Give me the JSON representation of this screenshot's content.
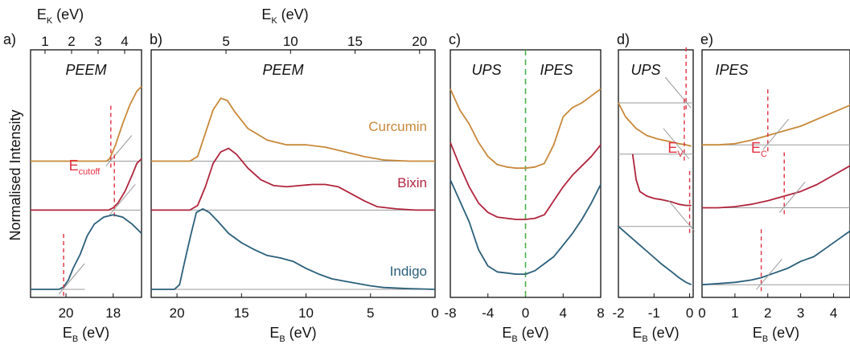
{
  "ylabel": "Normalised Intensity",
  "colors": {
    "Curcumin": "#c8883a",
    "Bixin": "#b0243c",
    "Indigo": "#2a5f7a",
    "cutoff_marker": "#e03040",
    "zero_marker": "#4aae4a",
    "baseline": "#9a9a9a"
  },
  "chart_data": [
    {
      "panel": "a)",
      "type": "line",
      "tag": "PEEM",
      "xlabel_main": "E",
      "xlabel_sub": "B",
      "xlabel_unit": "(eV)",
      "top_xlabel_main": "E",
      "top_xlabel_sub": "K",
      "top_xlabel_unit": "(eV)",
      "xlim": [
        21.5,
        16.8
      ],
      "x_ticks": [
        20,
        18
      ],
      "top_ticks": [
        1,
        2,
        3,
        4
      ],
      "annotation_main": "E",
      "annotation_sub": "cutoff",
      "series": [
        {
          "name": "Curcumin",
          "cutoff": 18.1,
          "points": [
            [
              21.5,
              0.55
            ],
            [
              18.3,
              0.55
            ],
            [
              18.15,
              0.56
            ],
            [
              17.9,
              0.62
            ],
            [
              17.6,
              0.71
            ],
            [
              17.3,
              0.79
            ],
            [
              17.0,
              0.85
            ],
            [
              16.8,
              0.87
            ]
          ]
        },
        {
          "name": "Bixin",
          "cutoff": 17.95,
          "points": [
            [
              21.5,
              0.34
            ],
            [
              18.2,
              0.34
            ],
            [
              18.0,
              0.35
            ],
            [
              17.8,
              0.37
            ],
            [
              17.5,
              0.42
            ],
            [
              17.2,
              0.49
            ],
            [
              17.0,
              0.54
            ],
            [
              16.8,
              0.56
            ]
          ]
        },
        {
          "name": "Indigo",
          "cutoff": 20.1,
          "points": [
            [
              21.5,
              0.0
            ],
            [
              20.3,
              0.0
            ],
            [
              20.1,
              0.01
            ],
            [
              19.9,
              0.04
            ],
            [
              19.7,
              0.09
            ],
            [
              19.4,
              0.15
            ],
            [
              19.1,
              0.23
            ],
            [
              18.8,
              0.28
            ],
            [
              18.4,
              0.31
            ],
            [
              18.0,
              0.32
            ],
            [
              17.6,
              0.31
            ],
            [
              17.2,
              0.28
            ],
            [
              16.8,
              0.24
            ]
          ]
        }
      ]
    },
    {
      "panel": "b)",
      "type": "line",
      "tag": "PEEM",
      "xlabel_main": "E",
      "xlabel_sub": "B",
      "xlabel_unit": "(eV)",
      "top_xlabel_main": "E",
      "top_xlabel_sub": "K",
      "top_xlabel_unit": "(eV)",
      "xlim": [
        22,
        0
      ],
      "x_ticks": [
        20,
        15,
        10,
        5,
        0
      ],
      "top_ticks": [
        5,
        10,
        15,
        20
      ],
      "series": [
        {
          "name": "Curcumin",
          "points": [
            [
              22,
              0.55
            ],
            [
              19,
              0.55
            ],
            [
              18.4,
              0.57
            ],
            [
              17.8,
              0.67
            ],
            [
              17.2,
              0.77
            ],
            [
              16.6,
              0.82
            ],
            [
              16.1,
              0.81
            ],
            [
              15.5,
              0.76
            ],
            [
              14.5,
              0.69
            ],
            [
              13.0,
              0.64
            ],
            [
              11.5,
              0.62
            ],
            [
              10.0,
              0.62
            ],
            [
              8.5,
              0.61
            ],
            [
              7.0,
              0.59
            ],
            [
              5.5,
              0.57
            ],
            [
              4.0,
              0.555
            ],
            [
              2.0,
              0.55
            ],
            [
              0,
              0.55
            ]
          ]
        },
        {
          "name": "Bixin",
          "points": [
            [
              22,
              0.34
            ],
            [
              19,
              0.34
            ],
            [
              18.4,
              0.36
            ],
            [
              17.8,
              0.44
            ],
            [
              17.2,
              0.54
            ],
            [
              16.6,
              0.59
            ],
            [
              16.0,
              0.605
            ],
            [
              15.4,
              0.58
            ],
            [
              14.5,
              0.52
            ],
            [
              13.5,
              0.47
            ],
            [
              12.5,
              0.445
            ],
            [
              11.5,
              0.44
            ],
            [
              10.5,
              0.445
            ],
            [
              9.5,
              0.45
            ],
            [
              8.5,
              0.45
            ],
            [
              7.5,
              0.44
            ],
            [
              6.5,
              0.41
            ],
            [
              5.5,
              0.38
            ],
            [
              4.5,
              0.355
            ],
            [
              3.0,
              0.345
            ],
            [
              1.5,
              0.34
            ],
            [
              0,
              0.34
            ]
          ]
        },
        {
          "name": "Indigo",
          "points": [
            [
              22,
              0.0
            ],
            [
              20.2,
              0.0
            ],
            [
              19.8,
              0.02
            ],
            [
              19.4,
              0.12
            ],
            [
              18.9,
              0.24
            ],
            [
              18.5,
              0.33
            ],
            [
              18.0,
              0.345
            ],
            [
              17.5,
              0.33
            ],
            [
              16.8,
              0.29
            ],
            [
              16.0,
              0.24
            ],
            [
              15.0,
              0.2
            ],
            [
              14.0,
              0.17
            ],
            [
              13.0,
              0.145
            ],
            [
              12.0,
              0.135
            ],
            [
              11.0,
              0.12
            ],
            [
              10.0,
              0.09
            ],
            [
              9.0,
              0.065
            ],
            [
              8.0,
              0.045
            ],
            [
              7.0,
              0.035
            ],
            [
              6.0,
              0.025
            ],
            [
              5.0,
              0.015
            ],
            [
              4.0,
              0.008
            ],
            [
              2.0,
              0.003
            ],
            [
              0,
              0.0
            ]
          ]
        }
      ]
    },
    {
      "panel": "c)",
      "type": "line",
      "tags": [
        "UPS",
        "IPES"
      ],
      "xlabel_main": "E",
      "xlabel_sub": "B",
      "xlabel_unit": "(eV)",
      "xlim": [
        -8,
        8
      ],
      "x_ticks": [
        -8,
        -4,
        0,
        4,
        8
      ],
      "series": [
        {
          "name": "Curcumin",
          "points": [
            [
              -8,
              0.86
            ],
            [
              -7,
              0.77
            ],
            [
              -6,
              0.71
            ],
            [
              -5,
              0.63
            ],
            [
              -4,
              0.57
            ],
            [
              -3,
              0.535
            ],
            [
              -2,
              0.525
            ],
            [
              -1,
              0.52
            ],
            [
              0,
              0.52
            ],
            [
              1,
              0.525
            ],
            [
              2,
              0.54
            ],
            [
              3,
              0.62
            ],
            [
              4,
              0.74
            ],
            [
              5,
              0.78
            ],
            [
              6,
              0.8
            ],
            [
              7,
              0.83
            ],
            [
              8,
              0.86
            ]
          ]
        },
        {
          "name": "Bixin",
          "points": [
            [
              -8,
              0.63
            ],
            [
              -7,
              0.53
            ],
            [
              -6,
              0.44
            ],
            [
              -5,
              0.37
            ],
            [
              -4,
              0.33
            ],
            [
              -3,
              0.31
            ],
            [
              -2,
              0.305
            ],
            [
              -1,
              0.3
            ],
            [
              0,
              0.3
            ],
            [
              1,
              0.305
            ],
            [
              2,
              0.32
            ],
            [
              3,
              0.38
            ],
            [
              4,
              0.44
            ],
            [
              5,
              0.49
            ],
            [
              6,
              0.53
            ],
            [
              7,
              0.57
            ],
            [
              8,
              0.62
            ]
          ]
        },
        {
          "name": "Indigo",
          "points": [
            [
              -8,
              0.47
            ],
            [
              -7,
              0.38
            ],
            [
              -6,
              0.29
            ],
            [
              -5,
              0.17
            ],
            [
              -4,
              0.1
            ],
            [
              -3,
              0.075
            ],
            [
              -2,
              0.07
            ],
            [
              -1,
              0.065
            ],
            [
              0,
              0.065
            ],
            [
              1,
              0.08
            ],
            [
              2,
              0.11
            ],
            [
              3,
              0.14
            ],
            [
              4,
              0.19
            ],
            [
              5,
              0.24
            ],
            [
              6,
              0.3
            ],
            [
              7,
              0.37
            ],
            [
              8,
              0.45
            ]
          ]
        }
      ]
    },
    {
      "panel": "d)",
      "type": "line",
      "tag": "UPS",
      "xlabel_main": "E",
      "xlabel_sub": "B",
      "xlabel_unit": "(eV)",
      "xlim": [
        -2,
        0.1
      ],
      "x_ticks": [
        -2,
        -1,
        0
      ],
      "annotation_main": "E",
      "annotation_sub": "V",
      "series": [
        {
          "name": "Curcumin",
          "onset": -0.1,
          "points": [
            [
              -2.0,
              0.8
            ],
            [
              -1.8,
              0.74
            ],
            [
              -1.5,
              0.69
            ],
            [
              -1.2,
              0.66
            ],
            [
              -0.9,
              0.645
            ],
            [
              -0.6,
              0.635
            ],
            [
              -0.3,
              0.625
            ],
            [
              -0.1,
              0.62
            ],
            [
              0.05,
              0.615
            ]
          ]
        },
        {
          "name": "Bixin",
          "onset": -0.15,
          "points": [
            [
              -1.6,
              0.58
            ],
            [
              -1.5,
              0.47
            ],
            [
              -1.4,
              0.42
            ],
            [
              -1.2,
              0.4
            ],
            [
              -1.0,
              0.39
            ],
            [
              -0.8,
              0.385
            ],
            [
              -0.5,
              0.375
            ],
            [
              -0.3,
              0.365
            ],
            [
              -0.1,
              0.36
            ],
            [
              0.05,
              0.36
            ]
          ]
        },
        {
          "name": "Indigo",
          "onset": 0.0,
          "points": [
            [
              -2.0,
              0.27
            ],
            [
              -1.7,
              0.23
            ],
            [
              -1.4,
              0.19
            ],
            [
              -1.1,
              0.15
            ],
            [
              -0.8,
              0.11
            ],
            [
              -0.5,
              0.075
            ],
            [
              -0.3,
              0.05
            ],
            [
              -0.1,
              0.03
            ],
            [
              0.05,
              0.02
            ]
          ]
        }
      ]
    },
    {
      "panel": "e)",
      "type": "line",
      "tag": "IPES",
      "xlabel_main": "E",
      "xlabel_sub": "B",
      "xlabel_unit": "(eV)",
      "xlim": [
        0,
        4.5
      ],
      "x_ticks": [
        0,
        1,
        2,
        3,
        4
      ],
      "annotation_main": "E",
      "annotation_sub": "C",
      "series": [
        {
          "name": "Curcumin",
          "onset": 2.0,
          "points": [
            [
              0,
              0.62
            ],
            [
              0.5,
              0.62
            ],
            [
              1.0,
              0.625
            ],
            [
              1.5,
              0.64
            ],
            [
              2.0,
              0.66
            ],
            [
              2.5,
              0.68
            ],
            [
              3.0,
              0.7
            ],
            [
              3.5,
              0.73
            ],
            [
              4.0,
              0.76
            ],
            [
              4.5,
              0.79
            ]
          ]
        },
        {
          "name": "Bixin",
          "onset": 2.5,
          "points": [
            [
              0,
              0.35
            ],
            [
              0.5,
              0.35
            ],
            [
              1.0,
              0.355
            ],
            [
              1.5,
              0.365
            ],
            [
              2.0,
              0.38
            ],
            [
              2.5,
              0.4
            ],
            [
              3.0,
              0.42
            ],
            [
              3.5,
              0.45
            ],
            [
              4.0,
              0.49
            ],
            [
              4.5,
              0.53
            ]
          ]
        },
        {
          "name": "Indigo",
          "onset": 1.8,
          "points": [
            [
              0,
              0.02
            ],
            [
              0.5,
              0.025
            ],
            [
              1.0,
              0.03
            ],
            [
              1.5,
              0.04
            ],
            [
              1.8,
              0.05
            ],
            [
              2.2,
              0.07
            ],
            [
              2.6,
              0.09
            ],
            [
              3.0,
              0.12
            ],
            [
              3.4,
              0.14
            ],
            [
              3.8,
              0.18
            ],
            [
              4.2,
              0.22
            ],
            [
              4.5,
              0.25
            ]
          ]
        }
      ]
    }
  ]
}
